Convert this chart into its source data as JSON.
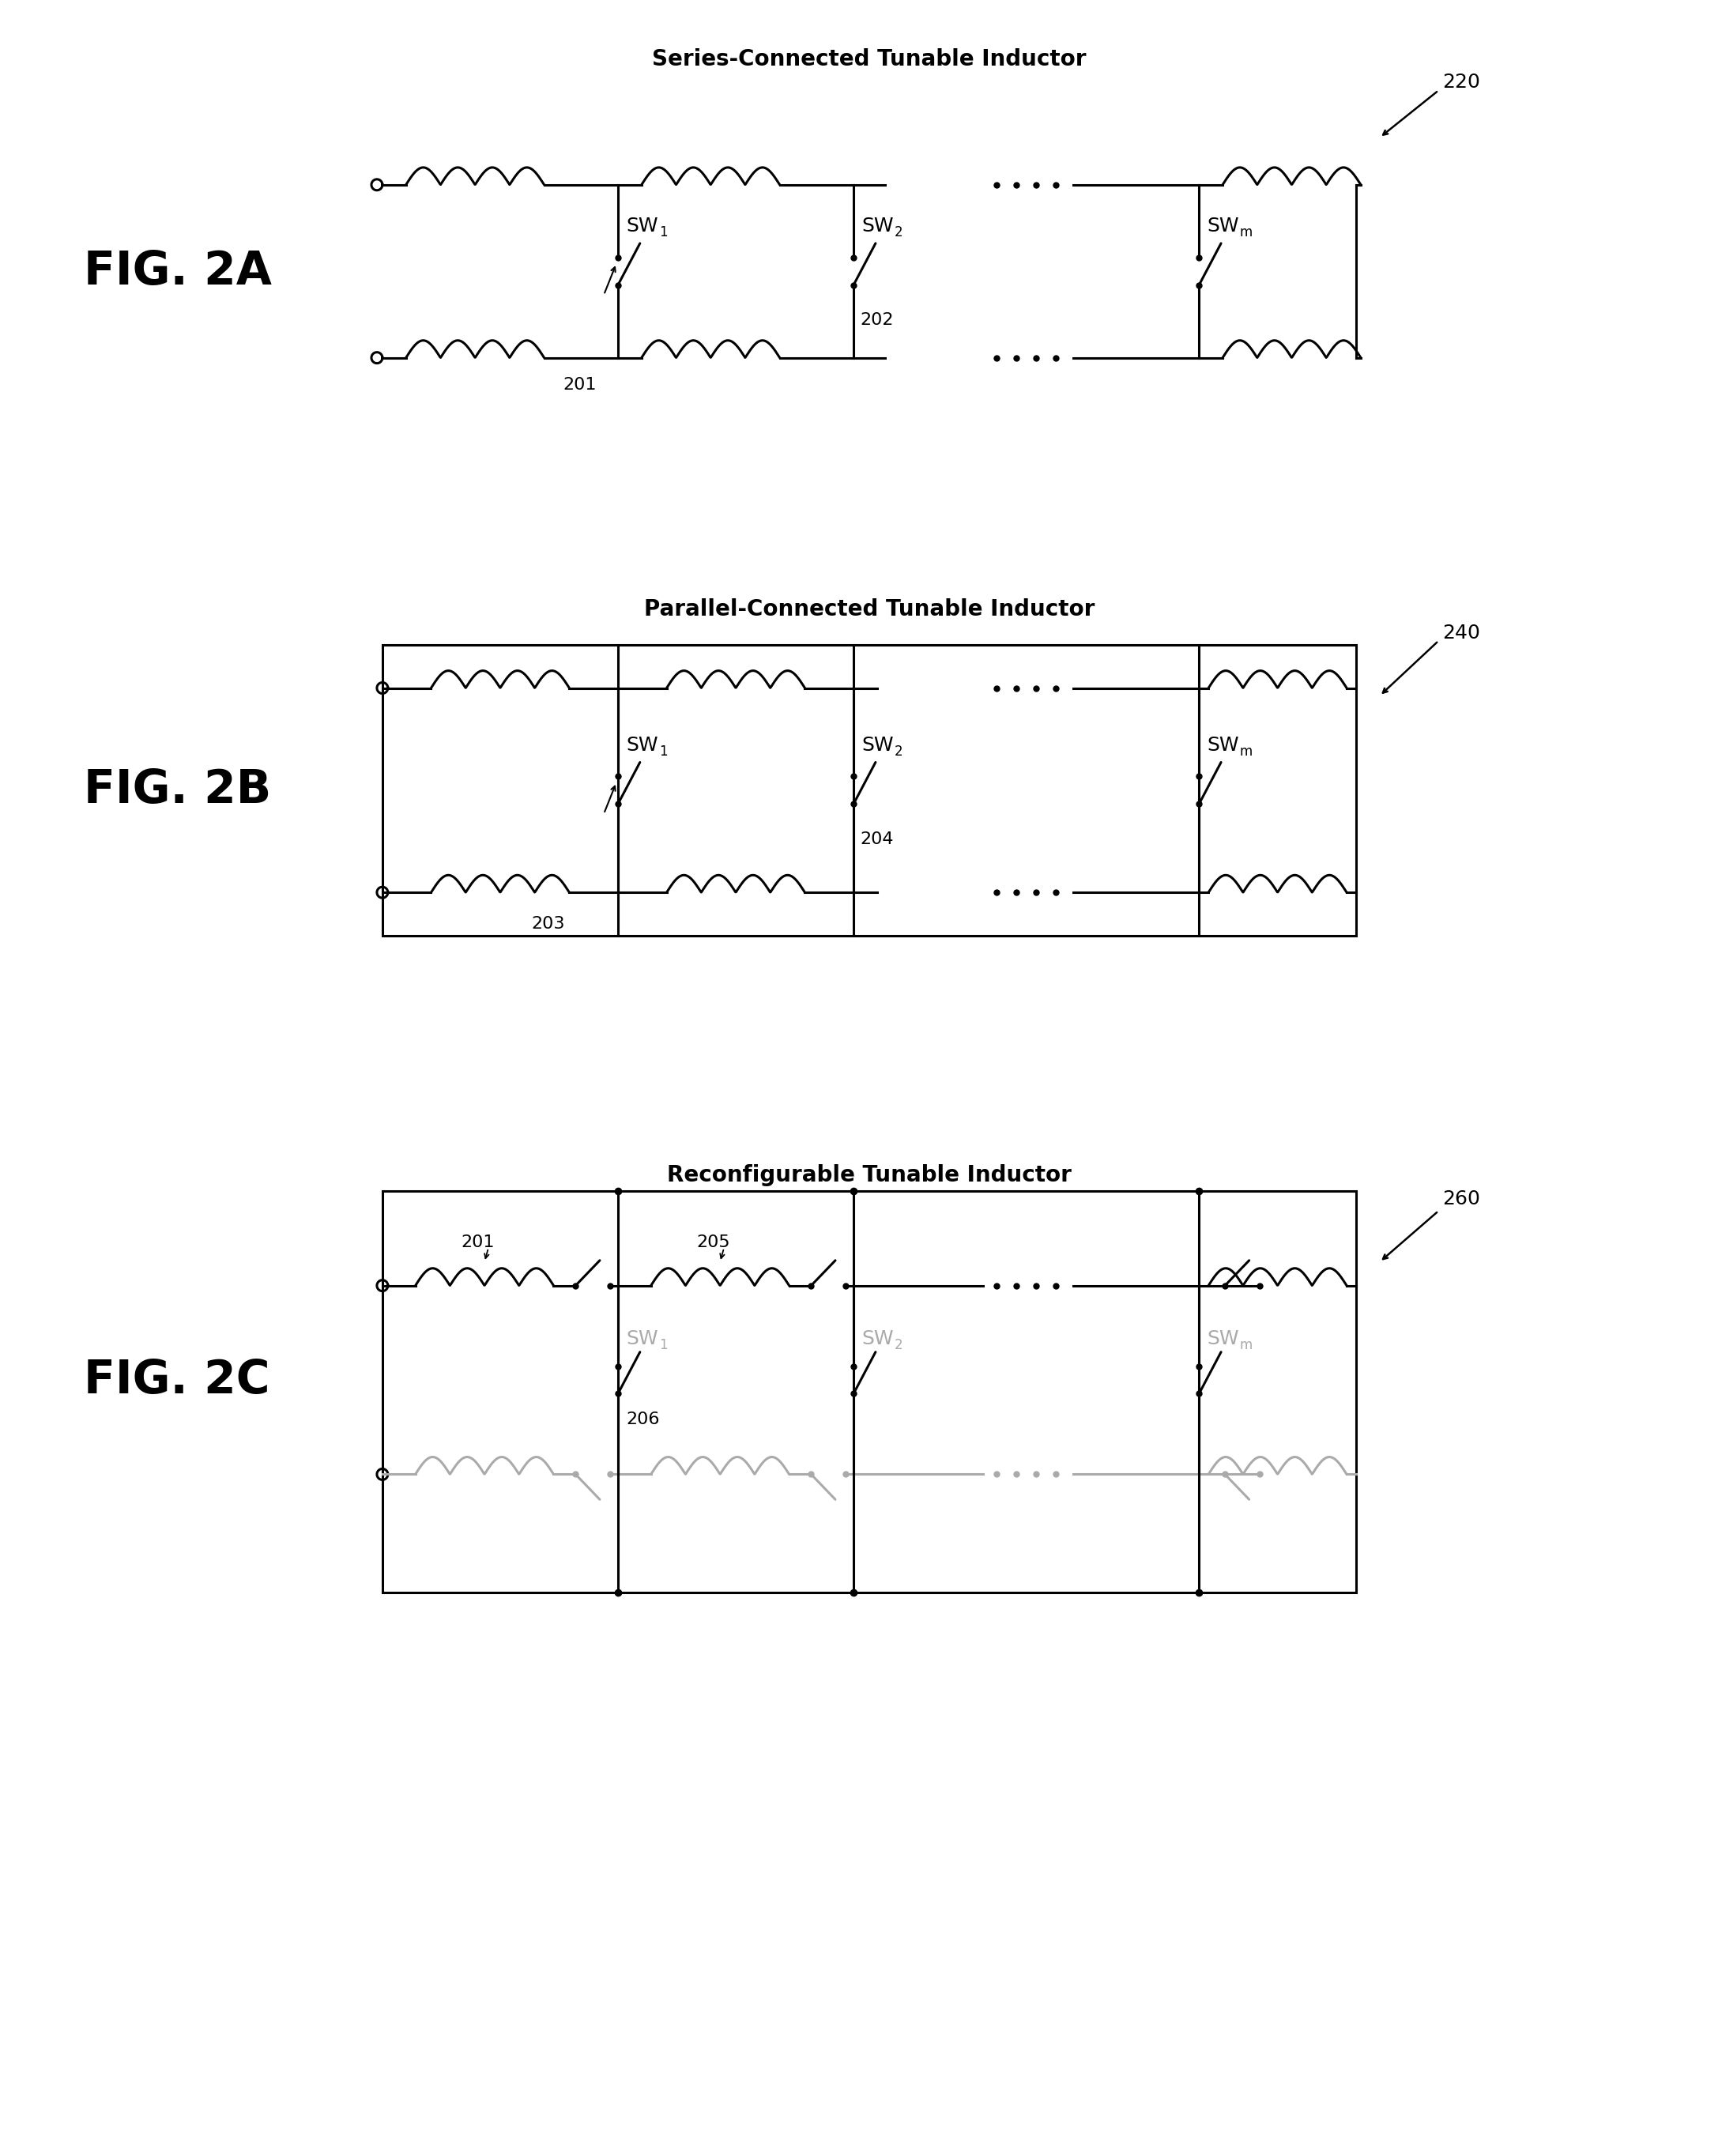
{
  "fig2a_title": "Series-Connected Tunable Inductor",
  "fig2b_title": "Parallel-Connected Tunable Inductor",
  "fig2c_title": "Reconfigurable Tunable Inductor",
  "label_2a": "FIG. 2A",
  "label_2b": "FIG. 2B",
  "label_2c": "FIG. 2C",
  "ref_220": "220",
  "ref_240": "240",
  "ref_260": "260",
  "ref_201_a": "201",
  "ref_202": "202",
  "ref_203": "203",
  "ref_204": "204",
  "ref_201_c": "201",
  "ref_205": "205",
  "ref_206": "206",
  "bg_color": "#ffffff",
  "line_color": "#000000",
  "gray_color": "#aaaaaa",
  "fontsize_title": 20,
  "fontsize_label": 42,
  "fontsize_ref": 16,
  "fontsize_sw": 18,
  "fontsize_sub": 12
}
